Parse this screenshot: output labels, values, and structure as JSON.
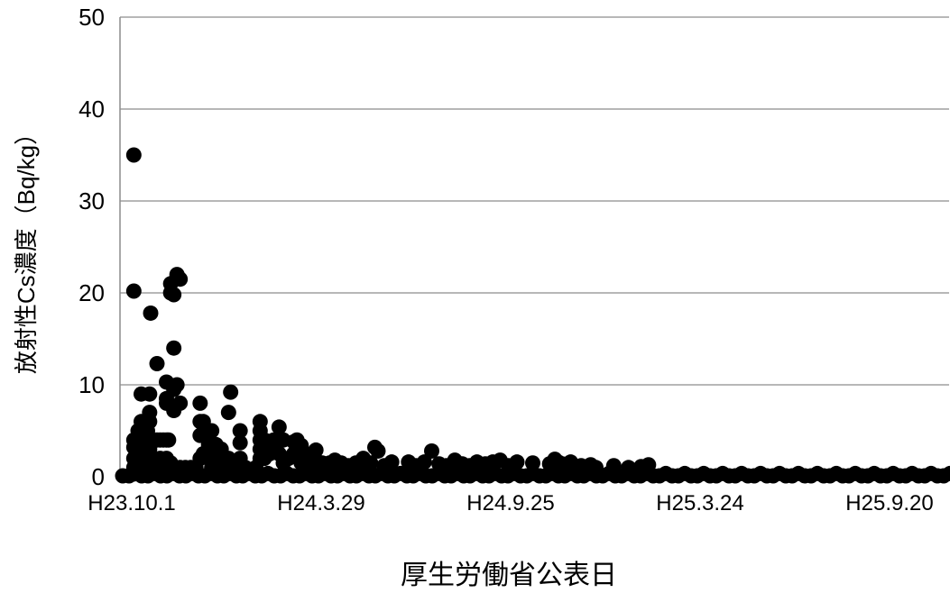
{
  "chart_data": {
    "type": "scatter",
    "title": "",
    "xlabel": "厚生労働省公表日",
    "ylabel": "放射性Cs濃度（Bq/kg）",
    "ylim": [
      0,
      50
    ],
    "yticks": [
      "0",
      "10",
      "20",
      "30",
      "40",
      "50"
    ],
    "xlim": [
      "H23.10.1",
      "H25.11.29"
    ],
    "xticks": [
      {
        "label": "H23.10.1",
        "date": "H23.10.1"
      },
      {
        "label": "H24.3.29",
        "date": "H24.3.29"
      },
      {
        "label": "H24.9.25",
        "date": "H24.9.25"
      },
      {
        "label": "H25.3.24",
        "date": "H25.3.24"
      },
      {
        "label": "H25.9.20",
        "date": "H25.9.20"
      }
    ],
    "grid": true,
    "legend": "none",
    "marker_color": "#000000",
    "series": [
      {
        "points": [
          [
            "H23.10.3",
            35.0
          ],
          [
            "H23.10.3",
            20.2
          ],
          [
            "H23.10.3",
            4.0
          ],
          [
            "H23.10.3",
            3.2
          ],
          [
            "H23.10.3",
            2.0
          ],
          [
            "H23.10.3",
            1.0
          ],
          [
            "H23.10.3",
            0.3
          ],
          [
            "H23.10.7",
            5.0
          ],
          [
            "H23.10.7",
            2.5
          ],
          [
            "H23.10.7",
            0.5
          ],
          [
            "H23.10.10",
            9.0
          ],
          [
            "H23.10.10",
            6.0
          ],
          [
            "H23.10.10",
            3.0
          ],
          [
            "H23.10.10",
            1.0
          ],
          [
            "H23.10.12",
            4.0
          ],
          [
            "H23.10.12",
            2.0
          ],
          [
            "H23.10.12",
            0.5
          ],
          [
            "H23.10.16",
            5.0
          ],
          [
            "H23.10.16",
            3.0
          ],
          [
            "H23.10.16",
            1.5
          ],
          [
            "H23.10.18",
            9.0
          ],
          [
            "H23.10.18",
            7.0
          ],
          [
            "H23.10.18",
            6.0
          ],
          [
            "H23.10.18",
            3.0
          ],
          [
            "H23.10.18",
            1.0
          ],
          [
            "H23.10.19",
            17.8
          ],
          [
            "H23.10.22",
            4.0
          ],
          [
            "H23.10.22",
            1.5
          ],
          [
            "H23.10.22",
            0.5
          ],
          [
            "H23.10.25",
            12.3
          ],
          [
            "H23.10.25",
            4.0
          ],
          [
            "H23.10.25",
            1.0
          ],
          [
            "H23.10.28",
            4.0
          ],
          [
            "H23.10.28",
            2.0
          ],
          [
            "H23.10.31",
            4.0
          ],
          [
            "H23.10.31",
            1.0
          ],
          [
            "H23.11.3",
            10.3
          ],
          [
            "H23.11.3",
            8.5
          ],
          [
            "H23.11.3",
            8.0
          ],
          [
            "H23.11.3",
            4.0
          ],
          [
            "H23.11.3",
            2.0
          ],
          [
            "H23.11.5",
            4.0
          ],
          [
            "H23.11.5",
            1.0
          ],
          [
            "H23.11.7",
            21.0
          ],
          [
            "H23.11.7",
            20.0
          ],
          [
            "H23.11.7",
            1.5
          ],
          [
            "H23.11.10",
            19.8
          ],
          [
            "H23.11.10",
            14.0
          ],
          [
            "H23.11.10",
            9.5
          ],
          [
            "H23.11.10",
            7.2
          ],
          [
            "H23.11.10",
            0.5
          ],
          [
            "H23.11.13",
            22.0
          ],
          [
            "H23.11.13",
            10.0
          ],
          [
            "H23.11.13",
            0.3
          ],
          [
            "H23.11.16",
            21.5
          ],
          [
            "H23.11.16",
            8.0
          ],
          [
            "H23.11.16",
            1.0
          ],
          [
            "H23.11.21",
            1.0
          ],
          [
            "H23.11.26",
            1.0
          ],
          [
            "H23.12.1",
            1.0
          ],
          [
            "H23.12.5",
            8.0
          ],
          [
            "H23.12.5",
            6.0
          ],
          [
            "H23.12.5",
            4.5
          ],
          [
            "H23.12.5",
            2.0
          ],
          [
            "H23.12.8",
            6.0
          ],
          [
            "H23.12.8",
            4.5
          ],
          [
            "H23.12.8",
            2.5
          ],
          [
            "H23.12.13",
            3.5
          ],
          [
            "H23.12.13",
            2.0
          ],
          [
            "H23.12.16",
            5.0
          ],
          [
            "H23.12.16",
            3.0
          ],
          [
            "H23.12.16",
            1.0
          ],
          [
            "H23.12.20",
            3.5
          ],
          [
            "H23.12.20",
            2.0
          ],
          [
            "H23.12.25",
            3.0
          ],
          [
            "H23.12.25",
            1.0
          ],
          [
            "H24.1.1",
            7.0
          ],
          [
            "H24.1.1",
            2.0
          ],
          [
            "H24.1.3",
            9.2
          ],
          [
            "H24.1.3",
            1.5
          ],
          [
            "H24.1.8",
            1.0
          ],
          [
            "H24.1.12",
            5.0
          ],
          [
            "H24.1.12",
            3.7
          ],
          [
            "H24.1.12",
            2.0
          ],
          [
            "H24.1.17",
            1.0
          ],
          [
            "H24.1.22",
            0.5
          ],
          [
            "H24.1.27",
            1.0
          ],
          [
            "H24.1.31",
            6.0
          ],
          [
            "H24.1.31",
            5.0
          ],
          [
            "H24.1.31",
            4.0
          ],
          [
            "H24.1.31",
            3.0
          ],
          [
            "H24.1.31",
            2.0
          ],
          [
            "H24.2.4",
            4.0
          ],
          [
            "H24.2.4",
            3.0
          ],
          [
            "H24.2.4",
            2.0
          ],
          [
            "H24.2.9",
            3.5
          ],
          [
            "H24.2.9",
            2.5
          ],
          [
            "H24.2.13",
            4.0
          ],
          [
            "H24.2.13",
            3.0
          ],
          [
            "H24.2.18",
            5.4
          ],
          [
            "H24.2.18",
            2.5
          ],
          [
            "H24.2.22",
            4.0
          ],
          [
            "H24.2.22",
            1.5
          ],
          [
            "H24.2.27",
            2.0
          ],
          [
            "H24.3.3",
            3.8
          ],
          [
            "H24.3.3",
            2.5
          ],
          [
            "H24.3.6",
            4.0
          ],
          [
            "H24.3.6",
            3.0
          ],
          [
            "H24.3.10",
            3.4
          ],
          [
            "H24.3.10",
            1.5
          ],
          [
            "H24.3.15",
            2.0
          ],
          [
            "H24.3.20",
            2.5
          ],
          [
            "H24.3.20",
            1.0
          ],
          [
            "H24.3.24",
            2.9
          ],
          [
            "H24.3.24",
            1.8
          ],
          [
            "H24.3.30",
            1.5
          ],
          [
            "H24.4.6",
            1.5
          ],
          [
            "H24.4.11",
            1.8
          ],
          [
            "H24.4.11",
            1.0
          ],
          [
            "H24.4.17",
            1.5
          ],
          [
            "H24.4.24",
            1.2
          ],
          [
            "H24.5.1",
            1.5
          ],
          [
            "H24.5.8",
            2.0
          ],
          [
            "H24.5.8",
            1.0
          ],
          [
            "H24.5.15",
            1.5
          ],
          [
            "H24.5.19",
            3.2
          ],
          [
            "H24.5.22",
            2.8
          ],
          [
            "H24.5.28",
            1.2
          ],
          [
            "H24.6.4",
            1.6
          ],
          [
            "H24.6.20",
            1.6
          ],
          [
            "H24.6.27",
            1.2
          ],
          [
            "H24.7.5",
            1.6
          ],
          [
            "H24.7.12",
            2.8
          ],
          [
            "H24.7.19",
            1.4
          ],
          [
            "H24.7.26",
            1.2
          ],
          [
            "H24.8.3",
            1.8
          ],
          [
            "H24.8.10",
            1.4
          ],
          [
            "H24.8.17",
            1.2
          ],
          [
            "H24.8.24",
            1.6
          ],
          [
            "H24.9.1",
            1.4
          ],
          [
            "H24.9.8",
            1.6
          ],
          [
            "H24.9.15",
            1.8
          ],
          [
            "H24.9.23",
            1.2
          ],
          [
            "H24.10.1",
            1.6
          ],
          [
            "H24.10.16",
            1.5
          ],
          [
            "H24.11.1",
            1.4
          ],
          [
            "H24.11.6",
            1.9
          ],
          [
            "H24.11.9",
            1.6
          ],
          [
            "H24.11.13",
            1.4
          ],
          [
            "H24.11.16",
            1.2
          ],
          [
            "H24.11.21",
            1.6
          ],
          [
            "H24.12.1",
            1.2
          ],
          [
            "H24.12.5",
            1.0
          ],
          [
            "H24.12.10",
            1.3
          ],
          [
            "H24.12.15",
            1.0
          ],
          [
            "H25.1.1",
            1.2
          ],
          [
            "H25.1.15",
            1.0
          ],
          [
            "H25.1.27",
            1.1
          ],
          [
            "H25.2.3",
            1.3
          ]
        ]
      }
    ]
  }
}
